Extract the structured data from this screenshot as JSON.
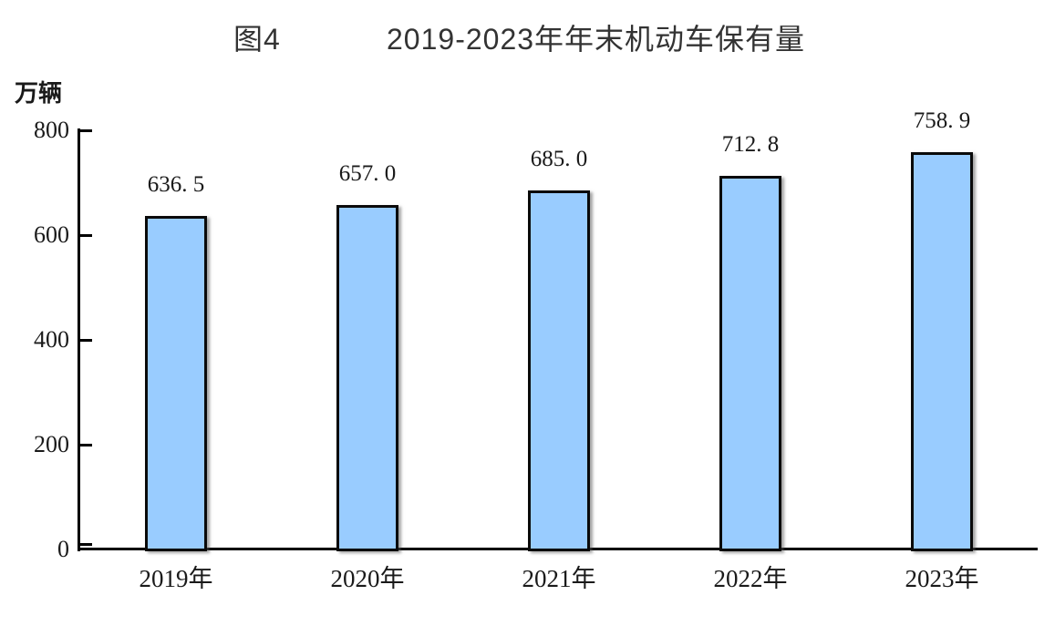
{
  "title": {
    "figure_label": "图4",
    "text": "2019-2023年年末机动车保有量"
  },
  "chart_data": {
    "type": "bar",
    "figure_label": "图4",
    "title": "2019-2023年年末机动车保有量",
    "unit_label": "万辆",
    "categories": [
      "2019年",
      "2020年",
      "2021年",
      "2022年",
      "2023年"
    ],
    "values": [
      636.5,
      657.0,
      685.0,
      712.8,
      758.9
    ],
    "bar_labels": [
      "636. 5",
      "657. 0",
      "685. 0",
      "712. 8",
      "758. 9"
    ],
    "xlabel": "",
    "ylabel": "万辆",
    "ylim": [
      0,
      800
    ],
    "yticks": [
      0,
      200,
      400,
      600,
      800
    ],
    "grid": false,
    "legend": "none",
    "colors": {
      "bar_fill": "#99CCFF",
      "bar_border": "#0A0A0A",
      "axis": "#000000",
      "text": "#1A1A1A",
      "title_text": "#333333",
      "background": "#FFFFFF"
    }
  }
}
